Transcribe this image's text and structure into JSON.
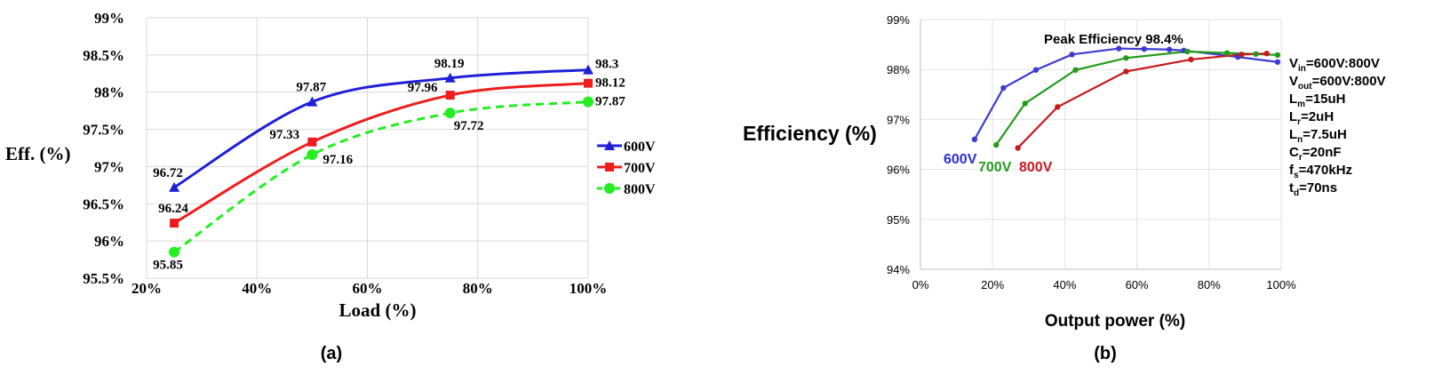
{
  "figure": {
    "panel_a_caption": "(a)",
    "panel_b_caption": "(b)"
  },
  "chart_data": [
    {
      "type": "line",
      "xlabel": "Load (%)",
      "ylabel": "Eff. (%)",
      "xlim": [
        20,
        100
      ],
      "ylim": [
        95.5,
        99
      ],
      "x_ticks": [
        "20%",
        "40%",
        "60%",
        "80%",
        "100%"
      ],
      "y_ticks": [
        "95.5%",
        "96%",
        "96.5%",
        "97%",
        "97.5%",
        "98%",
        "98.5%",
        "99%"
      ],
      "grid": true,
      "legend_position": "right",
      "x": [
        25,
        50,
        75,
        100
      ],
      "series": [
        {
          "name": "600V",
          "values": [
            96.72,
            97.87,
            98.19,
            98.3
          ],
          "labels": [
            "96.72",
            "97.87",
            "98.19",
            "98.3"
          ],
          "color": "#1f1fd8",
          "marker": "triangle",
          "dash": "solid"
        },
        {
          "name": "700V",
          "values": [
            96.24,
            97.33,
            97.96,
            98.12
          ],
          "labels": [
            "96.24",
            "97.33",
            "97.96",
            "98.12"
          ],
          "color": "#ee1c1c",
          "marker": "square",
          "dash": "solid"
        },
        {
          "name": "800V",
          "values": [
            95.85,
            97.16,
            97.72,
            97.87
          ],
          "labels": [
            "95.85",
            "97.16",
            "97.72",
            "97.87"
          ],
          "color": "#22ee22",
          "marker": "circle",
          "dash": "dashed"
        }
      ]
    },
    {
      "type": "line",
      "xlabel": "Output power (%)",
      "ylabel": "Efficiency (%)",
      "xlim": [
        0,
        100
      ],
      "ylim": [
        94,
        99
      ],
      "x_ticks": [
        "0%",
        "20%",
        "40%",
        "60%",
        "80%",
        "100%"
      ],
      "y_ticks": [
        "94%",
        "95%",
        "96%",
        "97%",
        "98%",
        "99%"
      ],
      "grid": true,
      "annotation": "Peak Efficiency 98.4%",
      "series": [
        {
          "name": "600V",
          "x": [
            15,
            23,
            32,
            42,
            55,
            62,
            69,
            73,
            88,
            99
          ],
          "values": [
            96.6,
            97.63,
            97.99,
            98.3,
            98.42,
            98.41,
            98.4,
            98.38,
            98.25,
            98.15
          ],
          "color": "#3c3ccf"
        },
        {
          "name": "700V",
          "x": [
            21,
            29,
            43,
            57,
            74,
            85,
            93,
            99
          ],
          "values": [
            96.49,
            97.32,
            97.99,
            98.23,
            98.36,
            98.33,
            98.31,
            98.29
          ],
          "color": "#239b1d"
        },
        {
          "name": "800V",
          "x": [
            27,
            38,
            57,
            75,
            89,
            96
          ],
          "values": [
            96.43,
            97.25,
            97.96,
            98.2,
            98.3,
            98.32
          ],
          "color": "#c8191e"
        }
      ],
      "series_labels": [
        "600V",
        "700V",
        "800V"
      ],
      "parameters": [
        {
          "sym": "V",
          "sub": "in",
          "val": "=600V:800V"
        },
        {
          "sym": "V",
          "sub": "out",
          "val": "=600V:800V"
        },
        {
          "sym": "L",
          "sub": "m",
          "val": "=15uH"
        },
        {
          "sym": "L",
          "sub": "r",
          "val": "=2uH"
        },
        {
          "sym": "L",
          "sub": "n",
          "val": "=7.5uH"
        },
        {
          "sym": "C",
          "sub": "r",
          "val": "=20nF"
        },
        {
          "sym": "f",
          "sub": "s",
          "val": "=470kHz"
        },
        {
          "sym": "t",
          "sub": "d",
          "val": "=70ns"
        }
      ]
    }
  ]
}
